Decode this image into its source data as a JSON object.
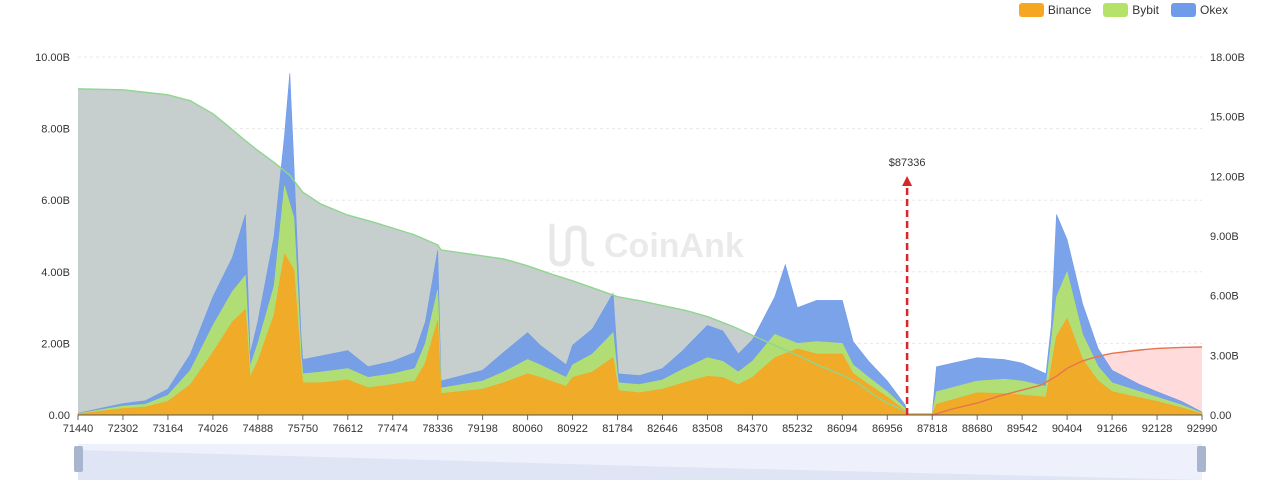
{
  "chart_data": {
    "type": "area",
    "watermark": "CoinAnk",
    "legend": [
      {
        "name": "Binance",
        "color": "#f5a623"
      },
      {
        "name": "Bybit",
        "color": "#b5e36a"
      },
      {
        "name": "Okex",
        "color": "#6f9be8"
      }
    ],
    "x_ticks": [
      "71440",
      "72302",
      "73164",
      "74026",
      "74888",
      "75750",
      "76612",
      "77474",
      "78336",
      "79198",
      "80060",
      "80922",
      "81784",
      "82646",
      "83508",
      "84370",
      "85232",
      "86094",
      "86956",
      "87818",
      "88680",
      "89542",
      "90404",
      "91266",
      "92128",
      "92990"
    ],
    "x_range": [
      71440,
      92990
    ],
    "y_left_ticks": [
      "0.00",
      "2.00B",
      "4.00B",
      "6.00B",
      "8.00B",
      "10.00B"
    ],
    "y_left_range": [
      0,
      10
    ],
    "y_right_ticks": [
      "0.00",
      "3.00B",
      "6.00B",
      "9.00B",
      "12.00B",
      "15.00B",
      "18.00B"
    ],
    "y_right_range": [
      0,
      18
    ],
    "current_price": {
      "label": "$87336",
      "value": 87336,
      "color": "#d9262c"
    },
    "series": [
      {
        "name": "Binance",
        "axis": "left",
        "color": "#f5a623",
        "points": [
          [
            71440,
            0.03
          ],
          [
            72302,
            0.18
          ],
          [
            72733,
            0.22
          ],
          [
            73164,
            0.38
          ],
          [
            73595,
            0.85
          ],
          [
            74026,
            1.75
          ],
          [
            74400,
            2.6
          ],
          [
            74650,
            2.95
          ],
          [
            74740,
            1.05
          ],
          [
            74888,
            1.5
          ],
          [
            75200,
            2.8
          ],
          [
            75400,
            4.5
          ],
          [
            75580,
            4.05
          ],
          [
            75650,
            2.7
          ],
          [
            75720,
            1.3
          ],
          [
            75750,
            0.9
          ],
          [
            76100,
            0.9
          ],
          [
            76612,
            0.98
          ],
          [
            77000,
            0.76
          ],
          [
            77474,
            0.85
          ],
          [
            77900,
            0.95
          ],
          [
            78100,
            1.45
          ],
          [
            78336,
            2.65
          ],
          [
            78400,
            0.6
          ],
          [
            79198,
            0.72
          ],
          [
            79600,
            0.9
          ],
          [
            80060,
            1.15
          ],
          [
            80300,
            1.05
          ],
          [
            80800,
            0.8
          ],
          [
            80922,
            1.05
          ],
          [
            81300,
            1.2
          ],
          [
            81700,
            1.6
          ],
          [
            81800,
            0.68
          ],
          [
            82200,
            0.62
          ],
          [
            82646,
            0.72
          ],
          [
            83000,
            0.88
          ],
          [
            83508,
            1.08
          ],
          [
            83800,
            1.05
          ],
          [
            84100,
            0.85
          ],
          [
            84370,
            1.05
          ],
          [
            84800,
            1.6
          ],
          [
            85232,
            1.85
          ],
          [
            85600,
            1.7
          ],
          [
            86094,
            1.7
          ],
          [
            86300,
            1.15
          ],
          [
            86600,
            0.85
          ],
          [
            86956,
            0.5
          ],
          [
            87300,
            0.12
          ],
          [
            87336,
            0.02
          ],
          [
            87818,
            0.02
          ],
          [
            87900,
            0.3
          ],
          [
            88680,
            0.62
          ],
          [
            89200,
            0.6
          ],
          [
            89542,
            0.56
          ],
          [
            90000,
            0.5
          ],
          [
            90200,
            2.2
          ],
          [
            90404,
            2.7
          ],
          [
            90700,
            1.55
          ],
          [
            91000,
            0.95
          ],
          [
            91266,
            0.65
          ],
          [
            91800,
            0.48
          ],
          [
            92128,
            0.38
          ],
          [
            92600,
            0.2
          ],
          [
            92990,
            0.04
          ]
        ]
      },
      {
        "name": "Bybit",
        "axis": "left",
        "color": "#b5e36a",
        "points": [
          [
            71440,
            0.04
          ],
          [
            72302,
            0.25
          ],
          [
            72733,
            0.3
          ],
          [
            73164,
            0.55
          ],
          [
            73595,
            1.25
          ],
          [
            74026,
            2.5
          ],
          [
            74400,
            3.45
          ],
          [
            74650,
            3.9
          ],
          [
            74740,
            1.35
          ],
          [
            74888,
            2.0
          ],
          [
            75200,
            3.6
          ],
          [
            75400,
            6.4
          ],
          [
            75580,
            5.5
          ],
          [
            75650,
            3.6
          ],
          [
            75720,
            1.65
          ],
          [
            75750,
            1.15
          ],
          [
            76100,
            1.2
          ],
          [
            76612,
            1.3
          ],
          [
            77000,
            1.05
          ],
          [
            77474,
            1.15
          ],
          [
            77900,
            1.3
          ],
          [
            78100,
            2.0
          ],
          [
            78336,
            3.5
          ],
          [
            78400,
            0.75
          ],
          [
            79198,
            0.95
          ],
          [
            79600,
            1.2
          ],
          [
            80060,
            1.55
          ],
          [
            80300,
            1.4
          ],
          [
            80800,
            1.05
          ],
          [
            80922,
            1.4
          ],
          [
            81300,
            1.7
          ],
          [
            81700,
            2.3
          ],
          [
            81800,
            0.9
          ],
          [
            82200,
            0.85
          ],
          [
            82646,
            0.98
          ],
          [
            83000,
            1.25
          ],
          [
            83508,
            1.6
          ],
          [
            83800,
            1.5
          ],
          [
            84100,
            1.2
          ],
          [
            84370,
            1.5
          ],
          [
            84800,
            2.25
          ],
          [
            85232,
            2.0
          ],
          [
            85600,
            2.05
          ],
          [
            86094,
            2.0
          ],
          [
            86300,
            1.4
          ],
          [
            86600,
            1.05
          ],
          [
            86956,
            0.65
          ],
          [
            87300,
            0.18
          ],
          [
            87336,
            0.03
          ],
          [
            87818,
            0.03
          ],
          [
            87900,
            0.65
          ],
          [
            88680,
            0.95
          ],
          [
            89200,
            1.0
          ],
          [
            89542,
            0.95
          ],
          [
            90000,
            0.8
          ],
          [
            90200,
            3.3
          ],
          [
            90404,
            4.0
          ],
          [
            90700,
            2.25
          ],
          [
            91000,
            1.35
          ],
          [
            91266,
            0.9
          ],
          [
            91800,
            0.65
          ],
          [
            92128,
            0.5
          ],
          [
            92600,
            0.28
          ],
          [
            92990,
            0.06
          ]
        ]
      },
      {
        "name": "Okex",
        "axis": "left",
        "color": "#6f9be8",
        "points": [
          [
            71440,
            0.05
          ],
          [
            72302,
            0.32
          ],
          [
            72733,
            0.4
          ],
          [
            73164,
            0.72
          ],
          [
            73595,
            1.7
          ],
          [
            74026,
            3.3
          ],
          [
            74400,
            4.4
          ],
          [
            74650,
            5.6
          ],
          [
            74740,
            1.7
          ],
          [
            74888,
            2.6
          ],
          [
            75200,
            5.0
          ],
          [
            75400,
            7.8
          ],
          [
            75500,
            9.55
          ],
          [
            75580,
            7.0
          ],
          [
            75650,
            4.5
          ],
          [
            75720,
            2.1
          ],
          [
            75750,
            1.55
          ],
          [
            76100,
            1.65
          ],
          [
            76612,
            1.8
          ],
          [
            77000,
            1.35
          ],
          [
            77474,
            1.5
          ],
          [
            77900,
            1.75
          ],
          [
            78100,
            2.6
          ],
          [
            78336,
            4.6
          ],
          [
            78400,
            0.95
          ],
          [
            79198,
            1.25
          ],
          [
            79600,
            1.75
          ],
          [
            80060,
            2.3
          ],
          [
            80300,
            1.95
          ],
          [
            80800,
            1.4
          ],
          [
            80922,
            1.95
          ],
          [
            81300,
            2.4
          ],
          [
            81700,
            3.4
          ],
          [
            81800,
            1.15
          ],
          [
            82200,
            1.1
          ],
          [
            82646,
            1.3
          ],
          [
            83000,
            1.75
          ],
          [
            83508,
            2.5
          ],
          [
            83800,
            2.35
          ],
          [
            84100,
            1.7
          ],
          [
            84370,
            2.1
          ],
          [
            84800,
            3.3
          ],
          [
            85000,
            4.2
          ],
          [
            85232,
            3.0
          ],
          [
            85600,
            3.2
          ],
          [
            86094,
            3.2
          ],
          [
            86300,
            2.05
          ],
          [
            86600,
            1.5
          ],
          [
            86956,
            0.95
          ],
          [
            87300,
            0.28
          ],
          [
            87336,
            0.04
          ],
          [
            87818,
            0.04
          ],
          [
            87900,
            1.35
          ],
          [
            88680,
            1.6
          ],
          [
            89200,
            1.55
          ],
          [
            89542,
            1.45
          ],
          [
            90000,
            1.15
          ],
          [
            90100,
            2.5
          ],
          [
            90200,
            5.6
          ],
          [
            90404,
            4.9
          ],
          [
            90700,
            3.1
          ],
          [
            91000,
            1.85
          ],
          [
            91266,
            1.25
          ],
          [
            91800,
            0.85
          ],
          [
            92128,
            0.65
          ],
          [
            92600,
            0.38
          ],
          [
            92990,
            0.08
          ]
        ]
      },
      {
        "name": "",
        "axis": "right",
        "color": "#aabbb8",
        "points": [
          [
            71440,
            16.4
          ],
          [
            72302,
            16.35
          ],
          [
            73164,
            16.1
          ],
          [
            73595,
            15.8
          ],
          [
            74026,
            15.15
          ],
          [
            74400,
            14.35
          ],
          [
            74600,
            13.9
          ],
          [
            74888,
            13.3
          ],
          [
            75200,
            12.7
          ],
          [
            75500,
            12.05
          ],
          [
            75750,
            11.2
          ],
          [
            76100,
            10.6
          ],
          [
            76612,
            10.05
          ],
          [
            77100,
            9.7
          ],
          [
            77474,
            9.4
          ],
          [
            77900,
            9.05
          ],
          [
            78336,
            8.55
          ],
          [
            78400,
            8.3
          ],
          [
            79198,
            8.0
          ],
          [
            79600,
            7.85
          ],
          [
            80060,
            7.5
          ],
          [
            80500,
            7.1
          ],
          [
            80922,
            6.75
          ],
          [
            81300,
            6.4
          ],
          [
            81784,
            5.95
          ],
          [
            82200,
            5.75
          ],
          [
            82646,
            5.5
          ],
          [
            83100,
            5.25
          ],
          [
            83508,
            4.95
          ],
          [
            84000,
            4.45
          ],
          [
            84370,
            4.0
          ],
          [
            84800,
            3.5
          ],
          [
            85232,
            3.0
          ],
          [
            85600,
            2.55
          ],
          [
            86094,
            2.0
          ],
          [
            86400,
            1.6
          ],
          [
            86700,
            1.0
          ],
          [
            86956,
            0.6
          ],
          [
            87300,
            0.2
          ],
          [
            87336,
            0.0
          ]
        ]
      },
      {
        "name": "",
        "axis": "right",
        "color": "#f08080",
        "points": [
          [
            87818,
            0.0
          ],
          [
            88200,
            0.3
          ],
          [
            88680,
            0.6
          ],
          [
            89100,
            0.95
          ],
          [
            89542,
            1.25
          ],
          [
            89900,
            1.5
          ],
          [
            90200,
            1.95
          ],
          [
            90404,
            2.35
          ],
          [
            90700,
            2.72
          ],
          [
            91000,
            2.95
          ],
          [
            91266,
            3.1
          ],
          [
            91800,
            3.27
          ],
          [
            92128,
            3.35
          ],
          [
            92600,
            3.4
          ],
          [
            92990,
            3.42
          ]
        ]
      }
    ]
  }
}
